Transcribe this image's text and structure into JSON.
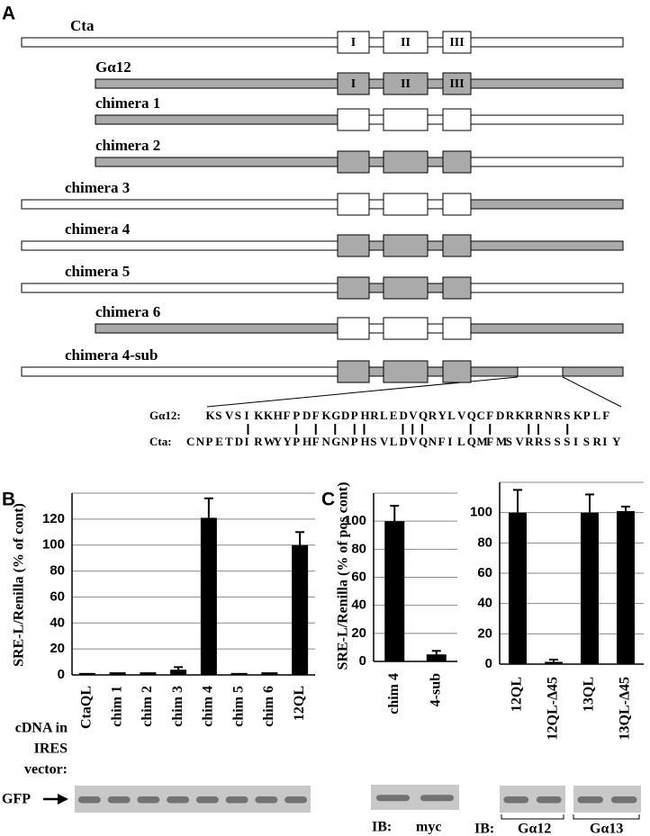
{
  "panel_a": {
    "label": "A",
    "constructs": [
      {
        "name": "Cta",
        "n": "#ffffff",
        "core": "#ffffff",
        "c": "#ffffff",
        "domains": [
          "I",
          "II",
          "III"
        ]
      },
      {
        "name": "Gα12",
        "n": "#aaaaaa",
        "core": "#aaaaaa",
        "c": "#aaaaaa",
        "domains": [
          "I",
          "II",
          "III"
        ]
      },
      {
        "name": "chimera 1",
        "n": "#aaaaaa",
        "core": "#ffffff",
        "c": "#ffffff"
      },
      {
        "name": "chimera 2",
        "n": "#aaaaaa",
        "core": "#aaaaaa",
        "c": "#ffffff"
      },
      {
        "name": "chimera 3",
        "n": "#ffffff",
        "core": "#ffffff",
        "c": "#aaaaaa"
      },
      {
        "name": "chimera 4",
        "n": "#ffffff",
        "core": "#aaaaaa",
        "c": "#aaaaaa"
      },
      {
        "name": "chimera 5",
        "n": "#ffffff",
        "core": "#aaaaaa",
        "c": "#ffffff"
      },
      {
        "name": "chimera 6",
        "n": "#aaaaaa",
        "core": "#ffffff",
        "c": "#aaaaaa"
      },
      {
        "name": "chimera 4-sub",
        "n": "#ffffff",
        "core": "#aaaaaa",
        "c": "#aaaaaa",
        "sub": "#ffffff"
      }
    ],
    "alignment": [
      {
        "name": "Gα12:",
        "sequence": "KSVSIKKHFPDFKGDPHRLEDVQRYLVQCFDRKRRNRSKPLF"
      },
      {
        "name": "Cta:",
        "sequence": "CNPETDIRWYYPHFNGNPHSVLDVQNFILQMFMSVRRSSSISRIY"
      }
    ]
  },
  "chart_data": [
    {
      "type": "bar",
      "label": "B",
      "y_label": "SRE-L/Renilla (% of cont)",
      "categories": [
        "CtaQL",
        "chim 1",
        "chim 2",
        "chim 3",
        "chim 4",
        "chim 5",
        "chim 6",
        "12QL"
      ],
      "values": [
        1.5,
        2,
        2,
        4,
        121,
        1.5,
        2,
        100
      ],
      "errors": [
        0,
        0,
        0,
        2,
        15,
        0,
        0,
        10
      ],
      "color": "#000000",
      "ylim": [
        0,
        140
      ],
      "yticks": [
        0,
        20,
        40,
        60,
        80,
        100,
        120
      ],
      "grid": true,
      "x_label": [
        "cDNA in",
        "IRES",
        "vector:"
      ],
      "blot_labels": [
        "GFP"
      ]
    },
    {
      "type": "bar",
      "label": "C",
      "y_label": "SRE-L/Renilla (% of pos cont)",
      "categories": [
        "chim 4",
        "4-sub"
      ],
      "values": [
        100,
        5
      ],
      "errors": [
        11,
        2.5
      ],
      "color": "#000000",
      "ylim": [
        0,
        120
      ],
      "yticks": [
        0,
        20,
        40,
        60,
        80,
        100
      ],
      "grid": true,
      "blot_labels": [
        "IB:",
        "myc"
      ]
    },
    {
      "type": "bar",
      "categories": [
        "12QL",
        "12QL-Δ45",
        "13QL",
        "13QL-Δ45"
      ],
      "values": [
        100,
        1.5,
        100,
        101
      ],
      "errors": [
        15,
        1.5,
        12,
        3
      ],
      "color": "#000000",
      "ylim": [
        0,
        120
      ],
      "yticks": [
        0,
        20,
        40,
        60,
        80,
        100
      ],
      "grid": true,
      "blot_labels": [
        "IB:",
        "Gα12",
        "Gα13"
      ]
    }
  ]
}
